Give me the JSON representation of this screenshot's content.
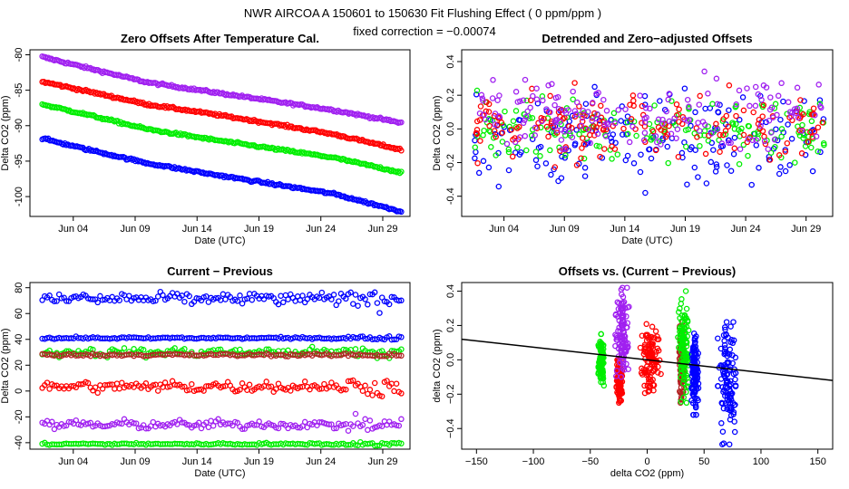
{
  "header": {
    "line1": "NWR   AIRCOA A   150601 to 150630   Fit Flushing Effect ( 0 ppm/ppm )",
    "line2": "fixed correction = −0.00074"
  },
  "colors": {
    "blue": "#0000ff",
    "red": "#ff0000",
    "green": "#00ee00",
    "purple": "#a020f0",
    "darkred": "#b22222",
    "black": "#000000"
  },
  "chart_data": [
    {
      "id": "zero-offsets",
      "type": "scatter",
      "title": "Zero Offsets After Temperature Cal.",
      "xlabel": "Date (UTC)",
      "ylabel": "Delta CO2 (ppm)",
      "xlim": [
        0.5,
        31.2
      ],
      "ylim": [
        -102.8,
        -79.3
      ],
      "xticks": [
        {
          "v": 4,
          "label": "Jun 04"
        },
        {
          "v": 9,
          "label": "Jun 09"
        },
        {
          "v": 14,
          "label": "Jun 14"
        },
        {
          "v": 19,
          "label": "Jun 19"
        },
        {
          "v": 24,
          "label": "Jun 24"
        },
        {
          "v": 29,
          "label": "Jun 29"
        }
      ],
      "yticks": [
        {
          "v": -100,
          "label": "-100"
        },
        {
          "v": -95,
          "label": "-95"
        },
        {
          "v": -90,
          "label": "-90"
        },
        {
          "v": -85,
          "label": "-85"
        },
        {
          "v": -80,
          "label": "-80"
        }
      ],
      "series": [
        {
          "name": "purple",
          "color": "purple",
          "x": [
            1.5,
            5,
            10,
            15,
            20,
            25,
            30.5
          ],
          "y": [
            -80.3,
            -81.8,
            -83.9,
            -85.2,
            -86.5,
            -87.8,
            -89.6
          ]
        },
        {
          "name": "red",
          "color": "red",
          "x": [
            1.5,
            5,
            10,
            15,
            20,
            25,
            30.5
          ],
          "y": [
            -83.8,
            -85.1,
            -87.0,
            -88.3,
            -89.7,
            -91.2,
            -93.4
          ]
        },
        {
          "name": "green",
          "color": "green",
          "x": [
            1.5,
            5,
            10,
            15,
            20,
            25,
            30.5
          ],
          "y": [
            -87.0,
            -88.4,
            -90.5,
            -91.9,
            -93.2,
            -94.5,
            -96.6
          ]
        },
        {
          "name": "blue",
          "color": "blue",
          "x": [
            1.5,
            5,
            10,
            15,
            20,
            25,
            30.5
          ],
          "y": [
            -91.8,
            -93.3,
            -95.3,
            -96.8,
            -98.2,
            -99.6,
            -102.1
          ]
        }
      ]
    },
    {
      "id": "detrended",
      "type": "scatter",
      "title": "Detrended and Zero−adjusted Offsets",
      "xlabel": "Date (UTC)",
      "ylabel": "Delta CO2 (ppm)",
      "xlim": [
        0.5,
        31.2
      ],
      "ylim": [
        -0.52,
        0.47
      ],
      "xticks": [
        {
          "v": 4,
          "label": "Jun 04"
        },
        {
          "v": 9,
          "label": "Jun 09"
        },
        {
          "v": 14,
          "label": "Jun 14"
        },
        {
          "v": 19,
          "label": "Jun 19"
        },
        {
          "v": 24,
          "label": "Jun 24"
        },
        {
          "v": 29,
          "label": "Jun 29"
        }
      ],
      "yticks": [
        {
          "v": -0.4,
          "label": "-0.4"
        },
        {
          "v": -0.2,
          "label": "-0.2"
        },
        {
          "v": 0,
          "label": "0.0"
        },
        {
          "v": 0.2,
          "label": "0.2"
        },
        {
          "v": 0.4,
          "label": "0.4"
        }
      ],
      "series": [
        {
          "name": "blue",
          "color": "blue",
          "center": -0.05,
          "spread": 0.14,
          "range": [
            -0.48,
            0.25
          ]
        },
        {
          "name": "green",
          "color": "green",
          "center": 0.0,
          "spread": 0.1,
          "range": [
            -0.25,
            0.4
          ]
        },
        {
          "name": "red",
          "color": "red",
          "center": 0.01,
          "spread": 0.09,
          "range": [
            -0.25,
            0.28
          ]
        },
        {
          "name": "purple",
          "color": "purple",
          "center": 0.1,
          "spread": 0.1,
          "range": [
            -0.12,
            0.42
          ]
        }
      ]
    },
    {
      "id": "current-previous",
      "type": "scatter",
      "title": "Current − Previous",
      "xlabel": "Date (UTC)",
      "ylabel": "Delta CO2 (ppm)",
      "xlim": [
        0.5,
        31.2
      ],
      "ylim": [
        -45,
        84
      ],
      "xticks": [
        {
          "v": 4,
          "label": "Jun 04"
        },
        {
          "v": 9,
          "label": "Jun 09"
        },
        {
          "v": 14,
          "label": "Jun 14"
        },
        {
          "v": 19,
          "label": "Jun 19"
        },
        {
          "v": 24,
          "label": "Jun 24"
        },
        {
          "v": 29,
          "label": "Jun 29"
        }
      ],
      "yticks": [
        {
          "v": -40,
          "label": "-40"
        },
        {
          "v": -20,
          "label": "-20"
        },
        {
          "v": 0,
          "label": "0"
        },
        {
          "v": 20,
          "label": "20"
        },
        {
          "v": 40,
          "label": "40"
        },
        {
          "v": 60,
          "label": "60"
        },
        {
          "v": 80,
          "label": "80"
        }
      ],
      "series": [
        {
          "name": "blue",
          "color": "blue",
          "center": 71.5,
          "spread": 2.2
        },
        {
          "name": "blue-flat",
          "color": "blue",
          "center": 41,
          "spread": 0.4
        },
        {
          "name": "green",
          "color": "green",
          "center": 30,
          "spread": 1.6
        },
        {
          "name": "darkred",
          "color": "darkred",
          "center": 28,
          "spread": 0.5
        },
        {
          "name": "red",
          "color": "red",
          "center": 3.5,
          "spread": 2.0
        },
        {
          "name": "purple",
          "color": "purple",
          "center": -26,
          "spread": 1.6
        },
        {
          "name": "green-flat",
          "color": "green",
          "center": -41,
          "spread": 0.4
        }
      ]
    },
    {
      "id": "offsets-vs-diff",
      "type": "scatter",
      "title": "Offsets vs. (Current − Previous)",
      "xlabel": "delta CO2 (ppm)",
      "ylabel": "delta CO2 (ppm)",
      "xlim": [
        -163,
        163
      ],
      "ylim": [
        -0.52,
        0.45
      ],
      "xticks": [
        {
          "v": -150,
          "label": "−150"
        },
        {
          "v": -100,
          "label": "−100"
        },
        {
          "v": -50,
          "label": "−50"
        },
        {
          "v": 0,
          "label": "0"
        },
        {
          "v": 50,
          "label": "50"
        },
        {
          "v": 100,
          "label": "100"
        },
        {
          "v": 150,
          "label": "150"
        }
      ],
      "yticks": [
        {
          "v": -0.4,
          "label": "−0.4"
        },
        {
          "v": -0.2,
          "label": "−0.2"
        },
        {
          "v": 0,
          "label": "0.0"
        },
        {
          "v": 0.2,
          "label": "0.2"
        },
        {
          "v": 0.4,
          "label": "0.4"
        }
      ],
      "fit_line": {
        "x": [
          -163,
          163
        ],
        "y": [
          0.12,
          -0.12
        ],
        "slope": -0.00074
      },
      "clusters": [
        {
          "name": "green",
          "color": "green",
          "x": [
            -43,
            -38
          ],
          "y": [
            -0.15,
            0.15
          ]
        },
        {
          "name": "red",
          "color": "red",
          "x": [
            -27,
            -22
          ],
          "y": [
            -0.25,
            0.0
          ]
        },
        {
          "name": "purple",
          "color": "purple",
          "x": [
            -28,
            -16
          ],
          "y": [
            -0.1,
            0.42
          ]
        },
        {
          "name": "red",
          "color": "red",
          "x": [
            -6,
            12
          ],
          "y": [
            -0.23,
            0.25
          ]
        },
        {
          "name": "darkred",
          "color": "darkred",
          "x": [
            28,
            33
          ],
          "y": [
            -0.25,
            0.22
          ]
        },
        {
          "name": "green",
          "color": "green",
          "x": [
            27,
            38
          ],
          "y": [
            -0.25,
            0.4
          ]
        },
        {
          "name": "blue",
          "color": "blue",
          "x": [
            39,
            45
          ],
          "y": [
            -0.32,
            0.2
          ]
        },
        {
          "name": "blue",
          "color": "blue",
          "x": [
            62,
            80
          ],
          "y": [
            -0.5,
            0.22
          ]
        }
      ]
    }
  ]
}
